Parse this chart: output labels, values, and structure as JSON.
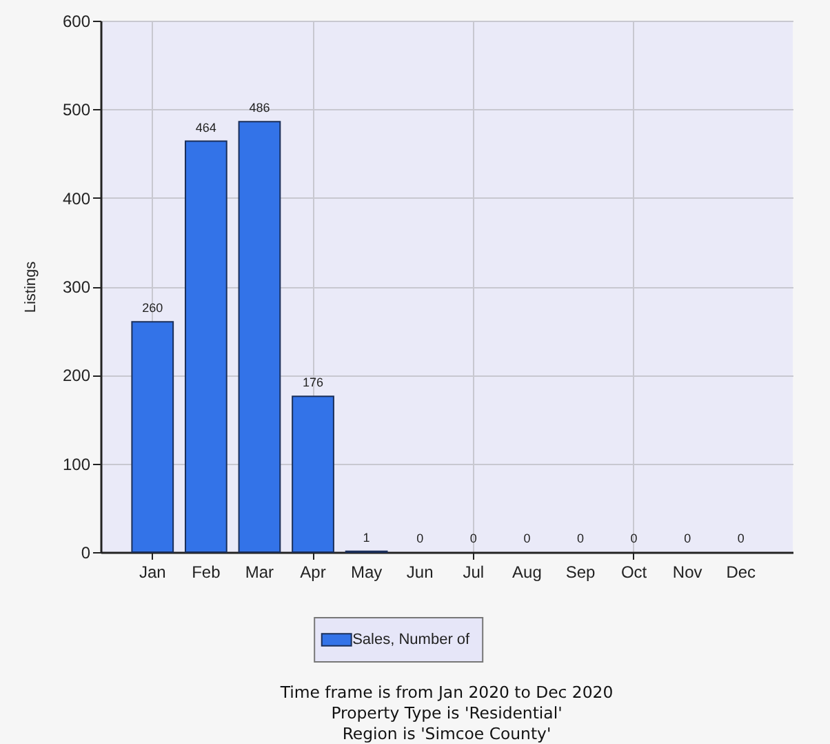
{
  "chart_data": {
    "type": "bar",
    "ylabel": "Listings",
    "categories": [
      "Jan",
      "Feb",
      "Mar",
      "Apr",
      "May",
      "Jun",
      "Jul",
      "Aug",
      "Sep",
      "Oct",
      "Nov",
      "Dec"
    ],
    "series": [
      {
        "name": "Sales, Number of",
        "color": "#3373e8",
        "values": [
          260,
          464,
          486,
          176,
          1,
          0,
          0,
          0,
          0,
          0,
          0,
          0
        ]
      }
    ],
    "ylim": [
      0,
      600
    ],
    "yticks": [
      0,
      100,
      200,
      300,
      400,
      500,
      600
    ],
    "grid": true,
    "legend": "bottom",
    "data_labels": true,
    "annotations": [
      "Time frame is from Jan 2020 to Dec 2020",
      "Property Type is 'Residential'",
      "Region is 'Simcoe County'"
    ]
  }
}
